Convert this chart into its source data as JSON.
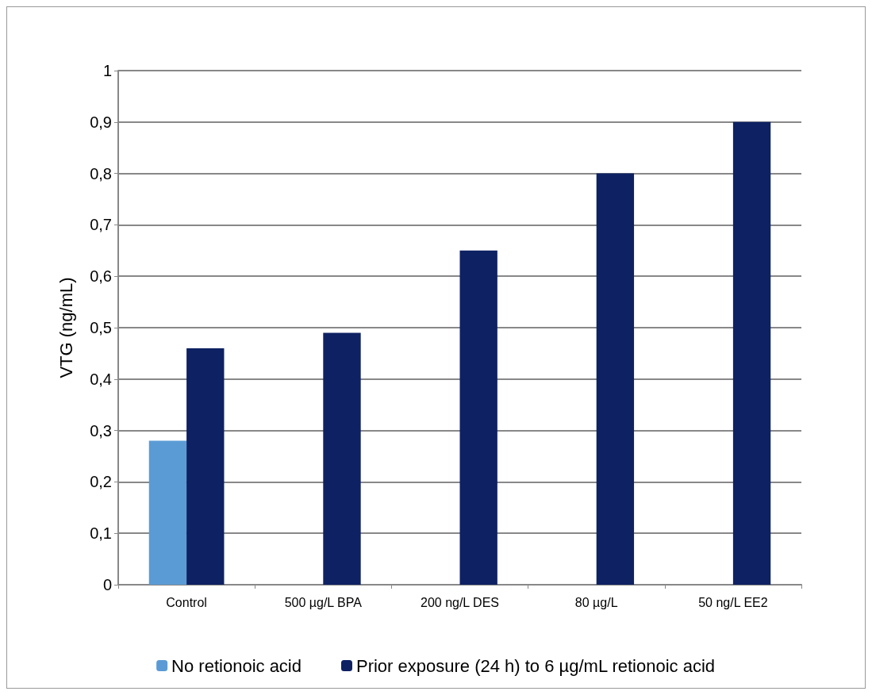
{
  "chart_data": {
    "type": "bar",
    "ylabel": "VTG (ng/mL)",
    "categories": [
      "Control",
      "500 µg/L BPA",
      "200 ng/L DES",
      "80 µg/L",
      "50 ng/L EE2"
    ],
    "series": [
      {
        "name": "No retionoic acid",
        "color": "#5b9bd5",
        "values": [
          0.28,
          0,
          0,
          0,
          0
        ]
      },
      {
        "name": "Prior exposure (24 h) to 6 µg/mL retionoic acid",
        "color": "#0d2163",
        "values": [
          0.46,
          0.49,
          0.65,
          0.8,
          0.9
        ]
      }
    ],
    "ylim": [
      0,
      1
    ],
    "yticks": [
      0,
      {
        "value": 0.1,
        "label": "0,1"
      },
      {
        "value": 0.2,
        "label": "0,2"
      },
      {
        "value": 0.3,
        "label": "0,3"
      },
      {
        "value": 0.4,
        "label": "0,4"
      },
      {
        "value": 0.5,
        "label": "0,5"
      },
      {
        "value": 0.6,
        "label": "0,6"
      },
      {
        "value": 0.7,
        "label": "0,7"
      },
      {
        "value": 0.8,
        "label": "0,8"
      },
      {
        "value": 0.9,
        "label": "0,9"
      },
      1
    ],
    "grid": "y",
    "legend": "bottom"
  }
}
